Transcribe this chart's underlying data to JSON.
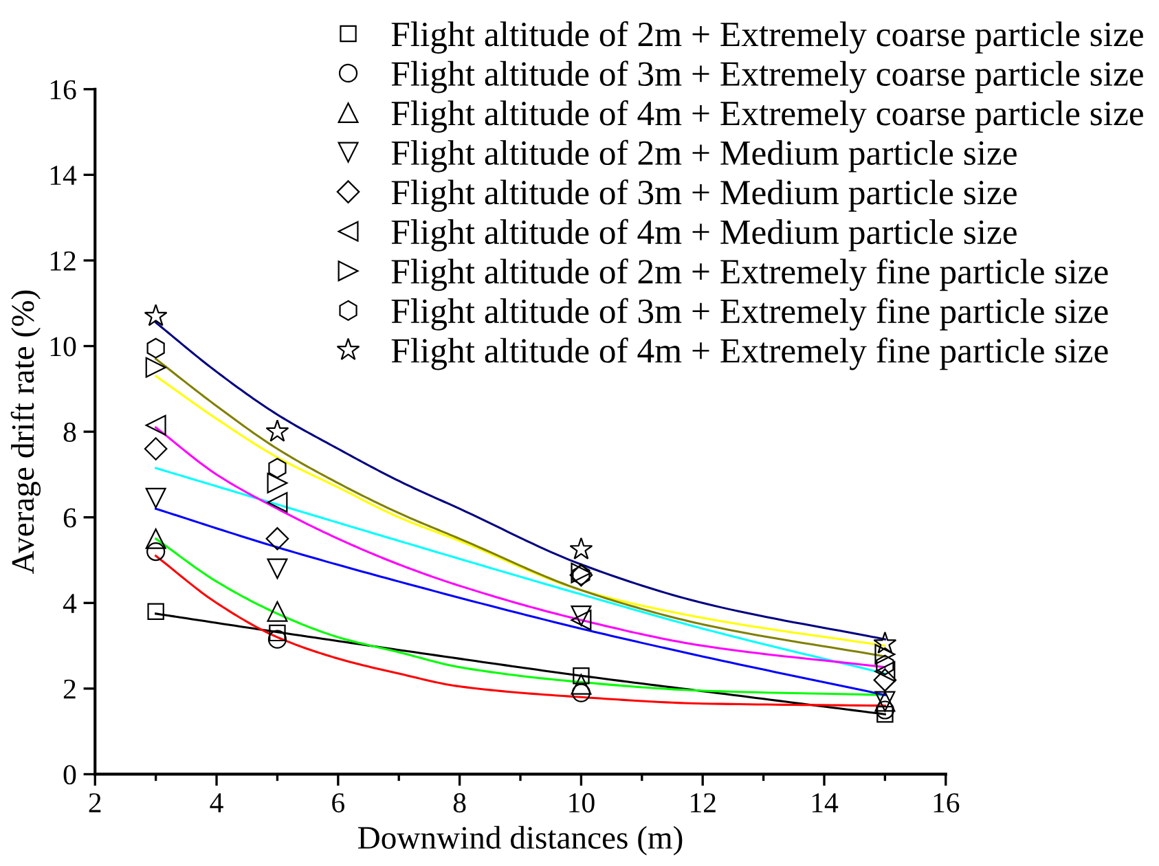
{
  "chart_data": {
    "type": "scatter",
    "xlabel": "Downwind distances (m)",
    "ylabel": "Average drift rate (%)",
    "xlim": [
      2,
      16
    ],
    "xticks": [
      2,
      4,
      6,
      8,
      10,
      12,
      14,
      16,
      {
        "value": 3,
        "label": null
      },
      {
        "value": 5,
        "label": null
      },
      {
        "value": 7,
        "label": null
      },
      {
        "value": 9,
        "label": null
      },
      {
        "value": 11,
        "label": null
      },
      {
        "value": 13,
        "label": null
      },
      {
        "value": 15,
        "label": null
      }
    ],
    "ylim": [
      0,
      16
    ],
    "yticks": [
      0,
      2,
      4,
      6,
      8,
      10,
      12,
      14,
      16
    ],
    "grid": false,
    "legend": "top right",
    "x": [
      3,
      5,
      10,
      15
    ],
    "series": [
      {
        "name": "Flight altitude of 2m + Extremely coarse particle size",
        "color": "#000000",
        "marker": "square",
        "values": [
          3.8,
          3.3,
          2.3,
          1.4
        ]
      },
      {
        "name": "Flight altitude of 3m + Extremely coarse particle size",
        "color": "#000000",
        "marker": "circle",
        "values": [
          5.2,
          3.15,
          1.9,
          1.5
        ]
      },
      {
        "name": "Flight altitude of 4m + Extremely coarse particle size",
        "color": "#000000",
        "marker": "triangle",
        "values": [
          5.5,
          3.8,
          2.1,
          1.7
        ]
      },
      {
        "name": "Flight altitude of 2m + Medium particle size",
        "color": "#000000",
        "marker": "triangle-down",
        "values": [
          6.45,
          4.8,
          3.7,
          1.7
        ]
      },
      {
        "name": "Flight altitude of 3m + Medium particle size",
        "color": "#000000",
        "marker": "diamond",
        "values": [
          7.6,
          5.5,
          4.65,
          2.2
        ]
      },
      {
        "name": "Flight altitude of 4m + Medium particle size",
        "color": "#000000",
        "marker": "triangle-left",
        "values": [
          8.15,
          6.35,
          3.6,
          2.4
        ]
      },
      {
        "name": "Flight altitude of 2m + Extremely fine particle size",
        "color": "#000000",
        "marker": "triangle-right",
        "values": [
          9.5,
          6.8,
          4.7,
          2.8
        ]
      },
      {
        "name": "Flight altitude of 3m + Extremely fine particle size",
        "color": "#000000",
        "values": [
          9.95,
          7.15,
          4.65,
          2.55
        ]
      },
      {
        "name": "Flight altitude of 4m + Extremely fine particle size",
        "color": "#000000",
        "marker": "star",
        "values": [
          10.7,
          8.0,
          5.25,
          3.05
        ]
      },
      {
        "type": "line",
        "color": "#000000",
        "x": [
          3,
          5,
          7.5,
          10,
          12.5,
          15
        ],
        "values": [
          3.75,
          3.32,
          2.8,
          2.3,
          1.85,
          1.4
        ]
      },
      {
        "type": "line",
        "color": "#ff0000",
        "x": [
          3,
          4,
          5,
          6,
          7,
          8,
          10,
          12,
          15
        ],
        "values": [
          5.1,
          4.0,
          3.2,
          2.7,
          2.35,
          2.05,
          1.8,
          1.65,
          1.6
        ]
      },
      {
        "type": "line",
        "color": "#00ff00",
        "x": [
          3,
          4,
          5,
          6,
          7,
          8,
          10,
          12,
          15
        ],
        "values": [
          5.5,
          4.5,
          3.75,
          3.2,
          2.85,
          2.5,
          2.15,
          1.95,
          1.85
        ]
      },
      {
        "type": "line",
        "color": "#0000ff",
        "x": [
          3,
          5,
          7,
          10,
          12,
          15
        ],
        "values": [
          6.2,
          5.3,
          4.5,
          3.4,
          2.75,
          1.85
        ]
      },
      {
        "type": "line",
        "color": "#00ffff",
        "x": [
          3,
          5,
          7,
          10,
          12,
          15
        ],
        "values": [
          7.15,
          6.3,
          5.45,
          4.2,
          3.4,
          2.35
        ]
      },
      {
        "type": "line",
        "color": "#ff00ff",
        "x": [
          3,
          4,
          5,
          6,
          7,
          8,
          10,
          12,
          15
        ],
        "values": [
          8.1,
          7.0,
          6.2,
          5.5,
          4.9,
          4.4,
          3.6,
          3.0,
          2.5
        ]
      },
      {
        "type": "line",
        "color": "#ffff00",
        "x": [
          3,
          4,
          5,
          6,
          7,
          8,
          10,
          12,
          15
        ],
        "values": [
          9.3,
          8.3,
          7.4,
          6.7,
          6.0,
          5.45,
          4.3,
          3.65,
          3.0
        ]
      },
      {
        "type": "line",
        "color": "#808000",
        "x": [
          3,
          4,
          5,
          6,
          7,
          8,
          10,
          12,
          15
        ],
        "values": [
          9.7,
          8.6,
          7.6,
          6.8,
          6.1,
          5.5,
          4.3,
          3.5,
          2.75
        ]
      },
      {
        "type": "line",
        "color": "#000080",
        "x": [
          3,
          4,
          5,
          6,
          7,
          8,
          10,
          12,
          15
        ],
        "values": [
          10.55,
          9.4,
          8.4,
          7.6,
          6.85,
          6.2,
          4.9,
          4.0,
          3.15
        ]
      }
    ]
  }
}
